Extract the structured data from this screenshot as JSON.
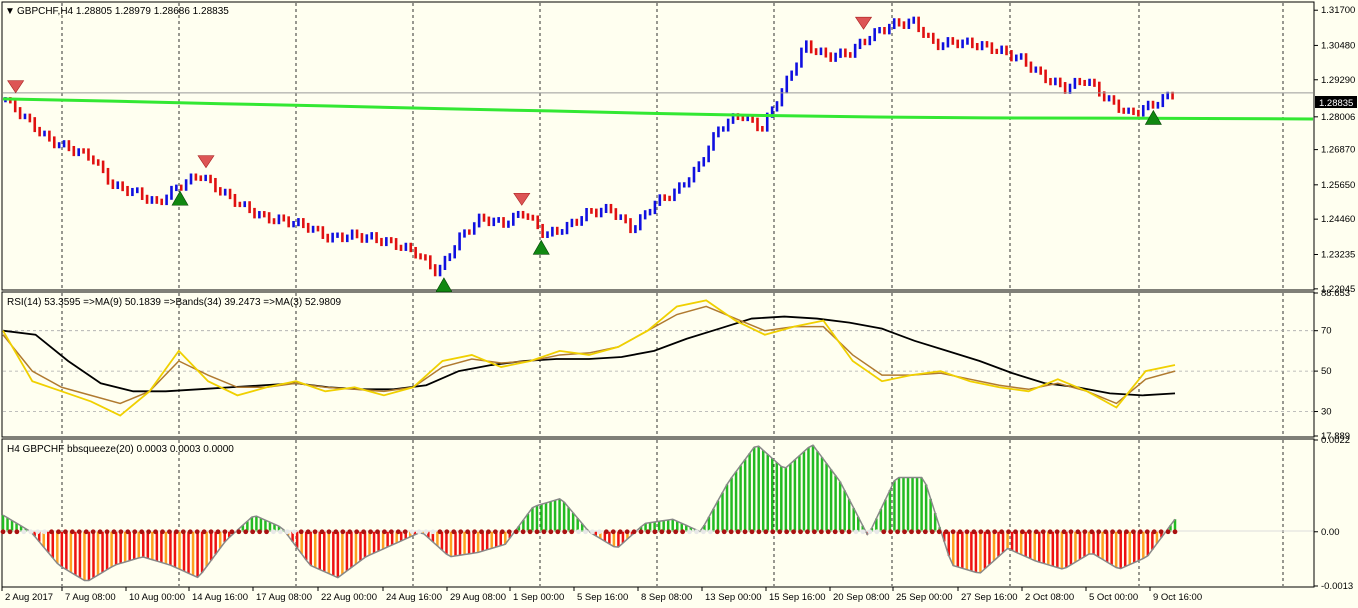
{
  "main_panel": {
    "header_arrow": "▼",
    "header": "GBPCHF,H4  1.28805 1.28979 1.28686 1.28835",
    "price_ticks": [
      "1.31700",
      "1.30480",
      "1.29290",
      "1.28006",
      "1.26870",
      "1.25650",
      "1.24460",
      "1.23235",
      "1.22045"
    ],
    "current_price": "1.28835"
  },
  "rsi_panel": {
    "header": "RSI(14) 53.3595  =>MA(9) 50.1839  =>Bands(34) 39.2473  =>MA(3) 52.9809",
    "ticks": [
      "88.653",
      "70",
      "50",
      "30",
      "17.889"
    ]
  },
  "squeeze_panel": {
    "header": "H4 GBPCHF bbsqueeze(20) 0.0003 0.0003 0.0000",
    "ticks": [
      "0.0022",
      "0.00",
      "-0.0013"
    ]
  },
  "time_axis": [
    "2 Aug 2017",
    "7 Aug 08:00",
    "10 Aug 00:00",
    "14 Aug 16:00",
    "17 Aug 08:00",
    "22 Aug 00:00",
    "24 Aug 16:00",
    "29 Aug 08:00",
    "1 Sep 00:00",
    "5 Sep 16:00",
    "8 Sep 08:00",
    "13 Sep 00:00",
    "15 Sep 16:00",
    "20 Sep 08:00",
    "25 Sep 00:00",
    "27 Sep 16:00",
    "2 Oct 08:00",
    "5 Oct 00:00",
    "9 Oct 16:00"
  ],
  "colors": {
    "background": "#fffff0",
    "bull_bar": "#1010e0",
    "bear_bar": "#e01010",
    "ma_line": "#33e833",
    "rsi_line": "#f0d000",
    "rsi_ma": "#b07a30",
    "rsi_bands": "#000000",
    "squeeze_pos": "#22bb22",
    "squeeze_neg_red": "#ee1111",
    "squeeze_neg_orange": "#ffa020",
    "sell_arrow": "#dd5555",
    "buy_arrow": "#118811"
  },
  "chart_data": [
    {
      "type": "line",
      "title": "GBPCHF,H4",
      "xlabel": "",
      "ylabel": "",
      "x_ticks": [
        "2 Aug 2017",
        "7 Aug 08:00",
        "10 Aug 00:00",
        "14 Aug 16:00",
        "17 Aug 08:00",
        "22 Aug 00:00",
        "24 Aug 16:00",
        "29 Aug 08:00",
        "1 Sep 00:00",
        "5 Sep 16:00",
        "8 Sep 08:00",
        "13 Sep 00:00",
        "15 Sep 16:00",
        "20 Sep 08:00",
        "25 Sep 00:00",
        "27 Sep 16:00",
        "2 Oct 08:00",
        "5 Oct 00:00",
        "9 Oct 16:00"
      ],
      "ylim": [
        1.2204,
        1.3195
      ],
      "series": [
        {
          "name": "price bars",
          "values": [
            1.286,
            1.279,
            1.272,
            1.269,
            1.266,
            1.256,
            1.254,
            1.25,
            1.256,
            1.26,
            1.254,
            1.249,
            1.245,
            1.244,
            1.242,
            1.238,
            1.239,
            1.238,
            1.236,
            1.233,
            1.226,
            1.238,
            1.245,
            1.243,
            1.247,
            1.239,
            1.242,
            1.247,
            1.248,
            1.241,
            1.25,
            1.254,
            1.262,
            1.276,
            1.281,
            1.276,
            1.29,
            1.305,
            1.301,
            1.302,
            1.308,
            1.312,
            1.313,
            1.305,
            1.306,
            1.305,
            1.303,
            1.3,
            1.294,
            1.29,
            1.293,
            1.286,
            1.281,
            1.284,
            1.288
          ]
        },
        {
          "name": "moving average",
          "values": [
            1.2863,
            1.2855,
            1.2846,
            1.2838,
            1.2829,
            1.2821,
            1.2812,
            1.2805,
            1.28,
            1.2797,
            1.2796,
            1.2795,
            1.2793
          ]
        }
      ]
    },
    {
      "type": "line",
      "title": "RSI(14) 53.3595  =>MA(9) 50.1839  =>Bands(34) 39.2473  =>MA(3) 52.9809",
      "ylim": [
        17.889,
        88.653
      ],
      "series": [
        {
          "name": "RSI",
          "values": [
            70,
            45,
            40,
            35,
            28,
            40,
            60,
            45,
            38,
            42,
            45,
            40,
            42,
            38,
            42,
            55,
            58,
            52,
            55,
            60,
            58,
            62,
            70,
            82,
            85,
            75,
            68,
            72,
            75,
            55,
            45,
            48,
            50,
            45,
            42,
            40,
            46,
            40,
            32,
            50,
            53
          ]
        },
        {
          "name": "MA",
          "values": [
            68,
            50,
            42,
            38,
            34,
            40,
            55,
            48,
            42,
            42,
            44,
            42,
            41,
            40,
            42,
            52,
            56,
            54,
            55,
            58,
            59,
            62,
            70,
            78,
            82,
            76,
            70,
            72,
            72,
            58,
            48,
            48,
            49,
            46,
            43,
            41,
            44,
            40,
            34,
            46,
            50
          ]
        },
        {
          "name": "Bands",
          "values": [
            70,
            68,
            55,
            44,
            40,
            40,
            41,
            42,
            43,
            44,
            42,
            41,
            41,
            43,
            50,
            53,
            55,
            56,
            56,
            57,
            60,
            66,
            71,
            76,
            77,
            76,
            74,
            71,
            65,
            60,
            55,
            49,
            44,
            42,
            39,
            38,
            39
          ]
        }
      ]
    },
    {
      "type": "bar",
      "title": "H4 GBPCHF bbsqueeze(20) 0.0003 0.0003 0.0000",
      "ylim": [
        -0.0013,
        0.0022
      ],
      "values": [
        0.0004,
        0.0,
        -0.0008,
        -0.0012,
        -0.0008,
        -0.0006,
        -0.0008,
        -0.0011,
        -0.0002,
        0.0004,
        0.0001,
        -0.0008,
        -0.0011,
        -0.0006,
        -0.0003,
        0.0,
        -0.0006,
        -0.0005,
        -0.0003,
        0.0006,
        0.0008,
        0.0,
        -0.0004,
        0.0002,
        0.0003,
        0.0,
        0.0012,
        0.0021,
        0.0015,
        0.0021,
        0.0012,
        -0.0001,
        0.0013,
        0.0013,
        -0.0008,
        -0.001,
        -0.0004,
        -0.0007,
        -0.0009,
        -0.0005,
        -0.0009,
        -0.0006,
        0.0003
      ]
    }
  ]
}
